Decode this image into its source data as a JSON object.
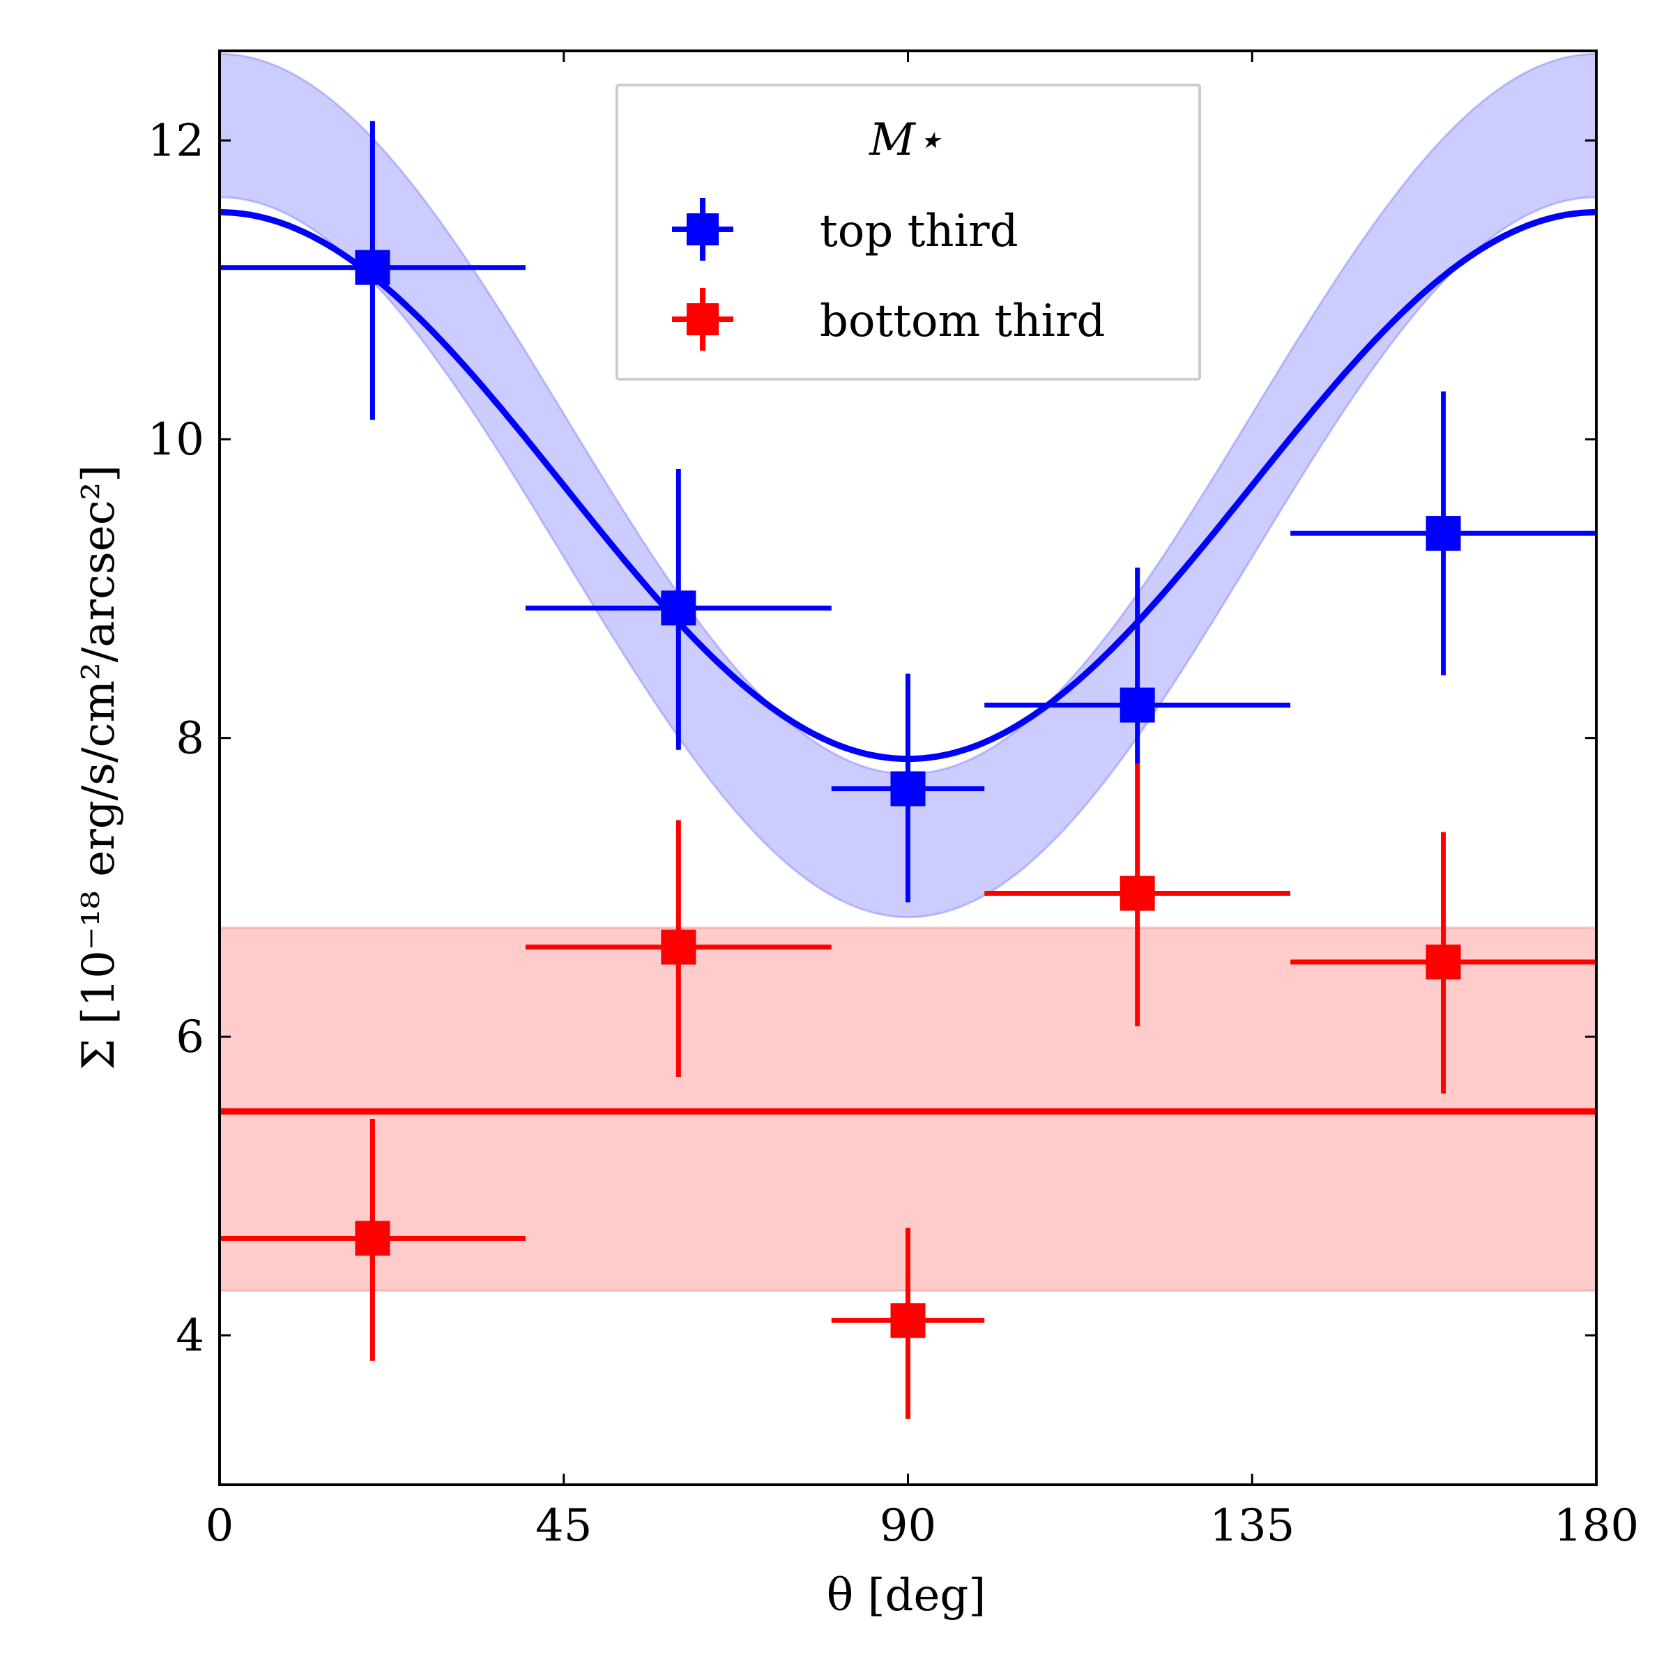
{
  "chart_data": {
    "type": "scatter",
    "title": "",
    "xlabel": "θ [deg]",
    "ylabel": "Σ [10⁻¹⁸ erg/s/cm²/arcsec²]",
    "xlim": [
      0,
      180
    ],
    "ylim": [
      3,
      12.6
    ],
    "xticks": [
      0,
      45,
      90,
      135,
      180
    ],
    "yticks": [
      4,
      6,
      8,
      10,
      12
    ],
    "grid": false,
    "legend": {
      "title": "M⋆",
      "placement": "top-center",
      "entries": [
        "top third",
        "bottom third"
      ]
    },
    "series": [
      {
        "name": "top third",
        "color": "#0000ff",
        "band_color": "#ccccff",
        "x": [
          20,
          60,
          90,
          120,
          160
        ],
        "y": [
          11.15,
          8.87,
          7.66,
          8.22,
          9.37
        ],
        "xerr": [
          20,
          20,
          10,
          20,
          20
        ],
        "yerr_low": [
          1.02,
          0.95,
          0.76,
          0.4,
          0.95
        ],
        "yerr_high": [
          0.98,
          0.93,
          0.77,
          0.92,
          0.95
        ],
        "model": {
          "form": "a + b*cos(2*theta)",
          "a": 9.69,
          "b": 1.83,
          "band_a": 9.69,
          "band_b": 2.41,
          "band_half_width": 0.48
        }
      },
      {
        "name": "bottom third",
        "color": "#ff0000",
        "band_color": "#ffcccc",
        "x": [
          20,
          60,
          90,
          120,
          160
        ],
        "y": [
          4.65,
          6.6,
          4.1,
          6.96,
          6.5
        ],
        "xerr": [
          20,
          20,
          10,
          20,
          20
        ],
        "yerr_low": [
          0.82,
          0.87,
          0.66,
          0.89,
          0.88
        ],
        "yerr_high": [
          0.8,
          0.85,
          0.62,
          0.87,
          0.87
        ],
        "model": {
          "form": "constant",
          "value": 5.5,
          "band": [
            4.3,
            6.73
          ]
        }
      }
    ]
  }
}
